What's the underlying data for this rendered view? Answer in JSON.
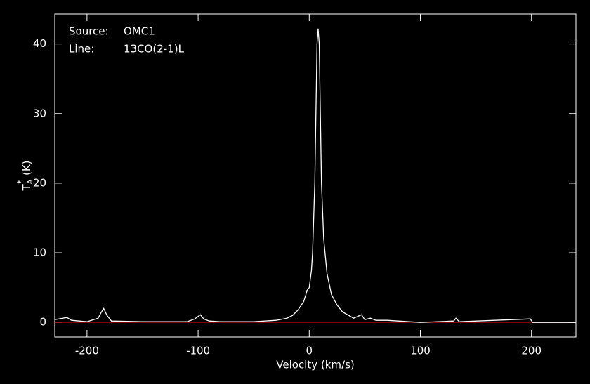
{
  "chart_data": {
    "type": "line",
    "x_label": "Velocity (km/s)",
    "y_label": [
      "T",
      "A",
      "*",
      "(K)"
    ],
    "annotations": [
      {
        "label": "Source:",
        "value": "OMC1"
      },
      {
        "label": "Line:",
        "value": "13CO(2-1)L"
      }
    ],
    "xlim": [
      -229,
      240
    ],
    "ylim": [
      -2.1,
      44.3
    ],
    "xticks": [
      -200,
      -100,
      0,
      100,
      200
    ],
    "yticks": [
      0,
      10,
      20,
      30,
      40
    ],
    "baseline": {
      "value": 0,
      "color": "#c00000"
    },
    "series": [
      {
        "color": "#ffffff",
        "x": [
          -229,
          -222,
          -218,
          -214,
          -200,
          -190,
          -187,
          -185,
          -182,
          -178,
          -150,
          -110,
          -103,
          -98,
          -95,
          -90,
          -80,
          -50,
          -30,
          -20,
          -15,
          -10,
          -5,
          -3,
          -2,
          0,
          2,
          3,
          5,
          6,
          7,
          8,
          9,
          10,
          11,
          13,
          16,
          20,
          25,
          30,
          40,
          47,
          50,
          55,
          60,
          70,
          80,
          100,
          130,
          132,
          135,
          199,
          201,
          240
        ],
        "values": [
          0.4,
          0.6,
          0.7,
          0.3,
          0.1,
          0.6,
          1.5,
          2.0,
          1.0,
          0.2,
          0.1,
          0.1,
          0.5,
          1.1,
          0.5,
          0.2,
          0.1,
          0.1,
          0.3,
          0.6,
          1.0,
          1.8,
          3.0,
          4.0,
          4.6,
          5.0,
          7.5,
          10,
          20,
          30,
          40,
          42.2,
          40,
          30,
          20,
          12,
          7,
          4,
          2.5,
          1.5,
          0.6,
          1.1,
          0.4,
          0.6,
          0.3,
          0.3,
          0.2,
          0,
          0.2,
          0.6,
          0.1,
          0.5,
          0,
          0
        ]
      }
    ]
  }
}
